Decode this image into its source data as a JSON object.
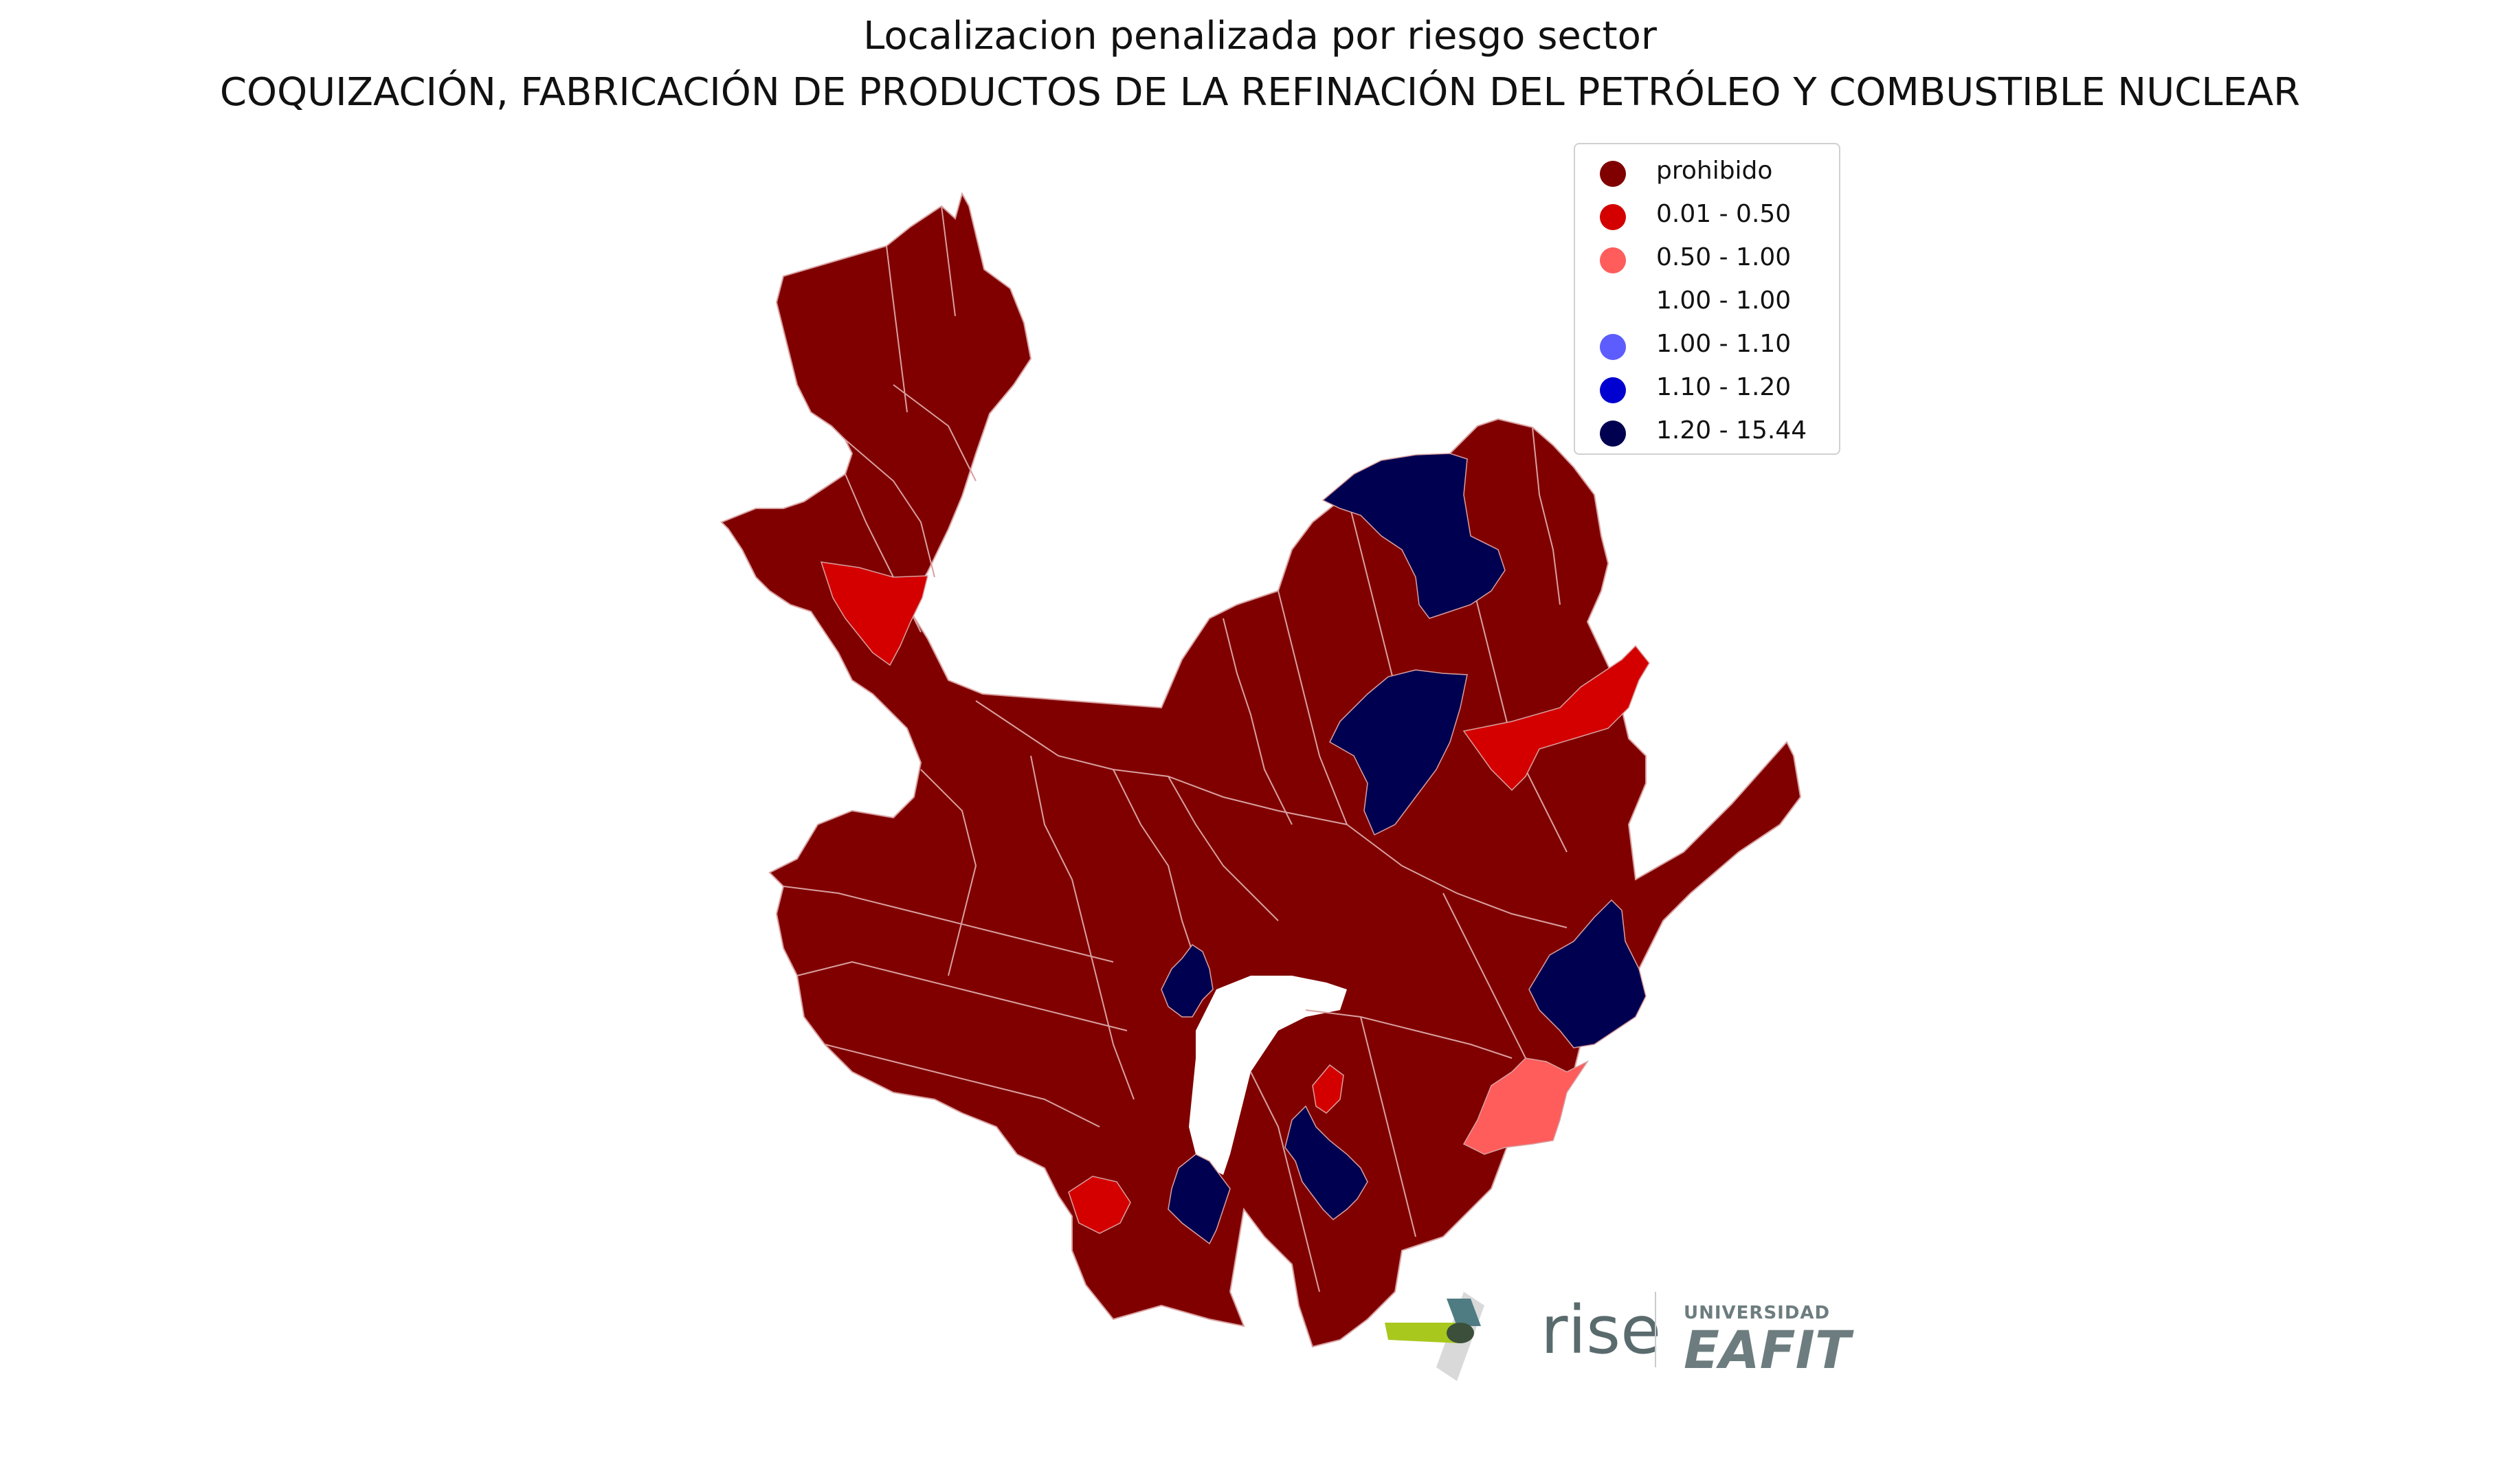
{
  "title_line1": "Localizacion penalizada por riesgo sector",
  "title_line2": "COQUIZACIÓN, FABRICACIÓN DE PRODUCTOS DE LA REFINACIÓN DEL PETRÓLEO Y COMBUSTIBLE NUCLEAR",
  "legend": [
    {
      "label": "prohibido",
      "color": "#800000"
    },
    {
      "label": "0.01 - 0.50",
      "color": "#d40000"
    },
    {
      "label": "0.50 - 1.00",
      "color": "#ff5c5c"
    },
    {
      "label": "1.00 - 1.00",
      "color": "#ffffff"
    },
    {
      "label": "1.00 - 1.10",
      "color": "#5c5cff"
    },
    {
      "label": "1.10 - 1.20",
      "color": "#0000d0"
    },
    {
      "label": "1.20 - 15.44",
      "color": "#000050"
    }
  ],
  "map_colors": {
    "prohibido": "#800000",
    "low": "#d40000",
    "mid": "#ff5c5c",
    "high": "#000050",
    "border": "#d9a0a0"
  },
  "logos": {
    "rise": "rise",
    "university_small": "UNIVERSIDAD",
    "university_big": "EAFIT"
  }
}
